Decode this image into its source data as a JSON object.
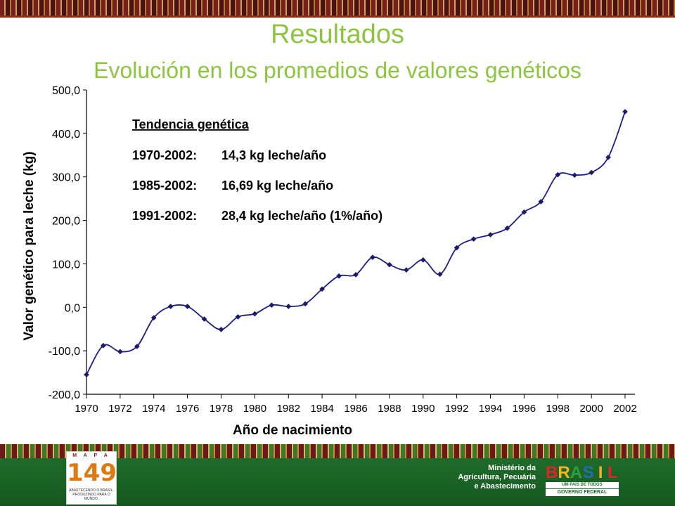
{
  "slide": {
    "title": "Resultados",
    "subtitle": "Evolución en los promedios de valores genéticos"
  },
  "footer": {
    "mapa_logo_top": "M A P A",
    "mapa_logo_number": "149",
    "mapa_logo_caption_1": "ABASTECENDO O BRASIL.",
    "mapa_logo_caption_2": "PRODUZINDO PARA O MUNDO.",
    "ministry_line1": "Ministério da",
    "ministry_line2": "Agricultura, Pecuária",
    "ministry_line3": "e Abastecimento",
    "brasil_letters": [
      "B",
      "R",
      "A",
      "S",
      "I",
      "L"
    ],
    "brasil_colors": [
      "#e8202a",
      "#f7b21b",
      "#2aa13b",
      "#1e6fb7",
      "#f7b21b",
      "#e8202a"
    ],
    "brasil_tagline": "UM PAÍS DE TODOS",
    "brasil_gov": "GOVERNO FEDERAL"
  },
  "colors": {
    "title_green": "#8cc63f",
    "line_blue": "#1c1c8c",
    "marker_navy": "#1a1a6e",
    "footer_green": "#1f6b2a"
  },
  "chart_data": {
    "type": "line",
    "title": "",
    "xlabel": "Año de nacimiento",
    "ylabel": "Valor genético para leche (kg)",
    "xlim": [
      1970,
      2002
    ],
    "ylim": [
      -200,
      500
    ],
    "xticks": [
      "1970",
      "1972",
      "1974",
      "1976",
      "1978",
      "1980",
      "1982",
      "1984",
      "1986",
      "1988",
      "1990",
      "1992",
      "1994",
      "1996",
      "1998",
      "2000",
      "2002"
    ],
    "yticks": [
      "500,0",
      "400,0",
      "300,0",
      "200,0",
      "100,0",
      "0,0",
      "-100,0",
      "-200,0"
    ],
    "grid": false,
    "series": [
      {
        "x": [
          1970,
          1971,
          1972,
          1973,
          1974,
          1975,
          1976,
          1977,
          1978,
          1979,
          1980,
          1981,
          1982,
          1983,
          1984,
          1985,
          1986,
          1987,
          1988,
          1989,
          1990,
          1991,
          1992,
          1993,
          1994,
          1995,
          1996,
          1997,
          1998,
          1999,
          2000,
          2001,
          2002
        ],
        "y": [
          -155,
          -88,
          -102,
          -90,
          -24,
          2,
          2,
          -27,
          -51,
          -22,
          -15,
          5,
          2,
          8,
          42,
          72,
          75,
          115,
          98,
          86,
          109,
          76,
          137,
          157,
          167,
          182,
          219,
          243,
          305,
          304,
          310,
          345,
          450
        ]
      }
    ],
    "annotation": {
      "heading": "Tendencia genética",
      "lines": [
        {
          "period": "1970-2002:",
          "value": "14,3 kg leche/año"
        },
        {
          "period": "1985-2002:",
          "value": "16,69 kg leche/año"
        },
        {
          "period": "1991-2002:",
          "value": "28,4 kg leche/año (1%/año)"
        }
      ]
    }
  }
}
